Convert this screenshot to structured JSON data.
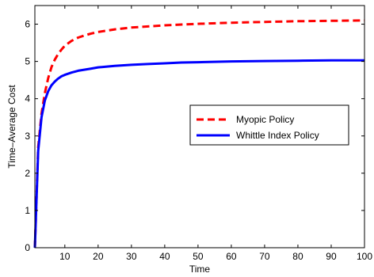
{
  "chart_data": {
    "type": "line",
    "xlabel": "Time",
    "ylabel": "Time–Average Cost",
    "xlim": [
      1,
      100
    ],
    "ylim": [
      0,
      6.5
    ],
    "xticks": [
      10,
      20,
      30,
      40,
      50,
      60,
      70,
      80,
      90,
      100
    ],
    "yticks": [
      0,
      1,
      2,
      3,
      4,
      5,
      6
    ],
    "grid": false,
    "legend_position": "center-right",
    "series": [
      {
        "name": "Myopic Policy",
        "color": "#ff0000",
        "dash": "dashed",
        "x": [
          1,
          2,
          3,
          4,
          5,
          6,
          7,
          8,
          9,
          10,
          12,
          14,
          16,
          18,
          20,
          25,
          30,
          35,
          40,
          45,
          50,
          60,
          70,
          80,
          90,
          100
        ],
        "y": [
          0,
          2.7,
          3.6,
          4.15,
          4.55,
          4.85,
          5.05,
          5.2,
          5.32,
          5.42,
          5.55,
          5.64,
          5.7,
          5.75,
          5.79,
          5.86,
          5.91,
          5.94,
          5.97,
          5.99,
          6.01,
          6.04,
          6.06,
          6.08,
          6.09,
          6.1
        ]
      },
      {
        "name": "Whittle Index Policy",
        "color": "#0000ff",
        "dash": "solid",
        "x": [
          1,
          2,
          3,
          4,
          5,
          6,
          7,
          8,
          9,
          10,
          12,
          14,
          16,
          18,
          20,
          25,
          30,
          35,
          40,
          45,
          50,
          60,
          70,
          80,
          90,
          100
        ],
        "y": [
          0,
          2.6,
          3.5,
          3.95,
          4.2,
          4.36,
          4.46,
          4.54,
          4.6,
          4.64,
          4.7,
          4.75,
          4.78,
          4.81,
          4.84,
          4.88,
          4.91,
          4.93,
          4.95,
          4.97,
          4.98,
          5.0,
          5.01,
          5.02,
          5.03,
          5.03
        ]
      }
    ]
  }
}
